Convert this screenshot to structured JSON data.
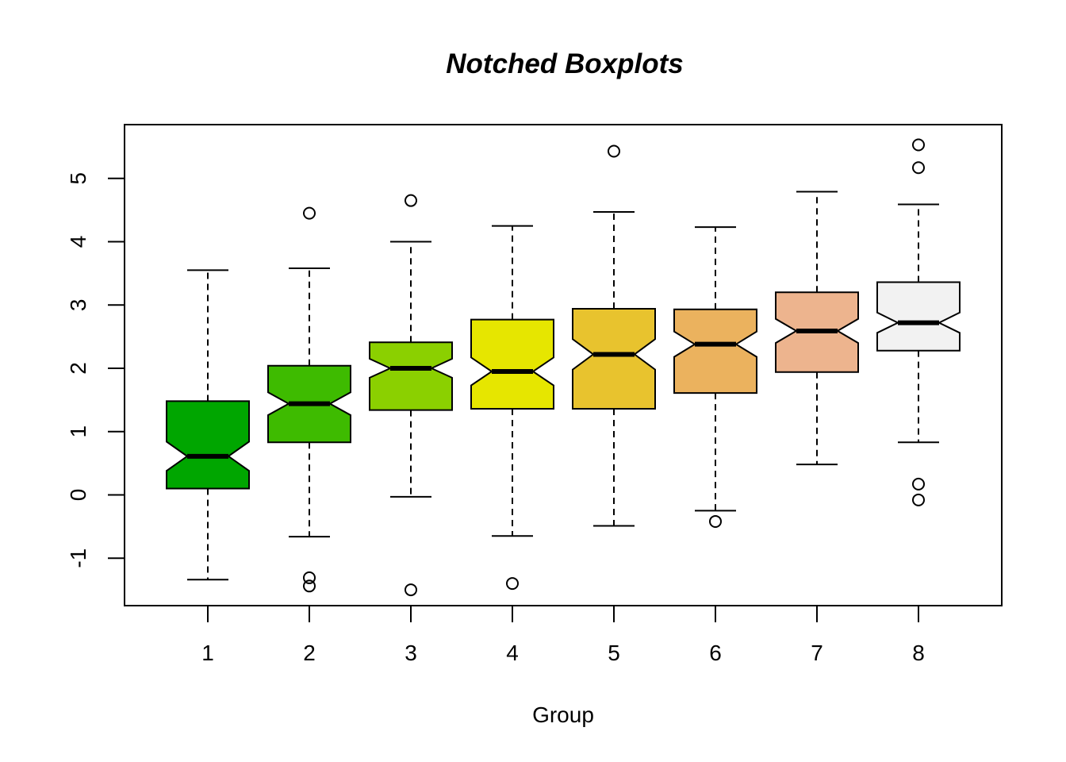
{
  "chart_data": {
    "type": "boxplot",
    "title": "Notched Boxplots",
    "xlabel": "Group",
    "ylabel": "",
    "ylim": [
      -1.75,
      5.85
    ],
    "yticks": [
      -1,
      0,
      1,
      2,
      3,
      4,
      5
    ],
    "ytick_labels": [
      "-1",
      "0",
      "1",
      "2",
      "3",
      "4",
      "5"
    ],
    "categories": [
      "1",
      "2",
      "3",
      "4",
      "5",
      "6",
      "7",
      "8"
    ],
    "grid": false,
    "legend": "none",
    "colors": [
      "#00A600",
      "#3EBB00",
      "#8BD000",
      "#E6E600",
      "#E8C32E",
      "#EBB25E",
      "#EDB48E",
      "#F2F2F2"
    ],
    "boxes": [
      {
        "group": "1",
        "whisker_low": -1.34,
        "q1": 0.1,
        "median": 0.61,
        "q3": 1.48,
        "whisker_high": 3.55,
        "notch_low": 0.38,
        "notch_high": 0.84,
        "outliers": []
      },
      {
        "group": "2",
        "whisker_low": -0.66,
        "q1": 0.83,
        "median": 1.44,
        "q3": 2.04,
        "whisker_high": 3.58,
        "notch_low": 1.26,
        "notch_high": 1.62,
        "outliers": [
          4.45,
          -1.31,
          -1.44
        ]
      },
      {
        "group": "3",
        "whisker_low": -0.03,
        "q1": 1.34,
        "median": 2.0,
        "q3": 2.41,
        "whisker_high": 4.0,
        "notch_low": 1.85,
        "notch_high": 2.15,
        "outliers": [
          4.65,
          -1.5
        ]
      },
      {
        "group": "4",
        "whisker_low": -0.65,
        "q1": 1.36,
        "median": 1.95,
        "q3": 2.77,
        "whisker_high": 4.25,
        "notch_low": 1.73,
        "notch_high": 2.17,
        "outliers": [
          -1.4
        ]
      },
      {
        "group": "5",
        "whisker_low": -0.49,
        "q1": 1.36,
        "median": 2.22,
        "q3": 2.94,
        "whisker_high": 4.47,
        "notch_low": 1.98,
        "notch_high": 2.46,
        "outliers": [
          5.43
        ]
      },
      {
        "group": "6",
        "whisker_low": -0.25,
        "q1": 1.61,
        "median": 2.38,
        "q3": 2.93,
        "whisker_high": 4.23,
        "notch_low": 2.18,
        "notch_high": 2.58,
        "outliers": [
          -0.42
        ]
      },
      {
        "group": "7",
        "whisker_low": 0.48,
        "q1": 1.94,
        "median": 2.59,
        "q3": 3.2,
        "whisker_high": 4.79,
        "notch_low": 2.4,
        "notch_high": 2.78,
        "outliers": []
      },
      {
        "group": "8",
        "whisker_low": 0.83,
        "q1": 2.28,
        "median": 2.72,
        "q3": 3.36,
        "whisker_high": 4.59,
        "notch_low": 2.56,
        "notch_high": 2.88,
        "outliers": [
          5.53,
          5.17,
          0.17,
          -0.08
        ]
      }
    ]
  }
}
